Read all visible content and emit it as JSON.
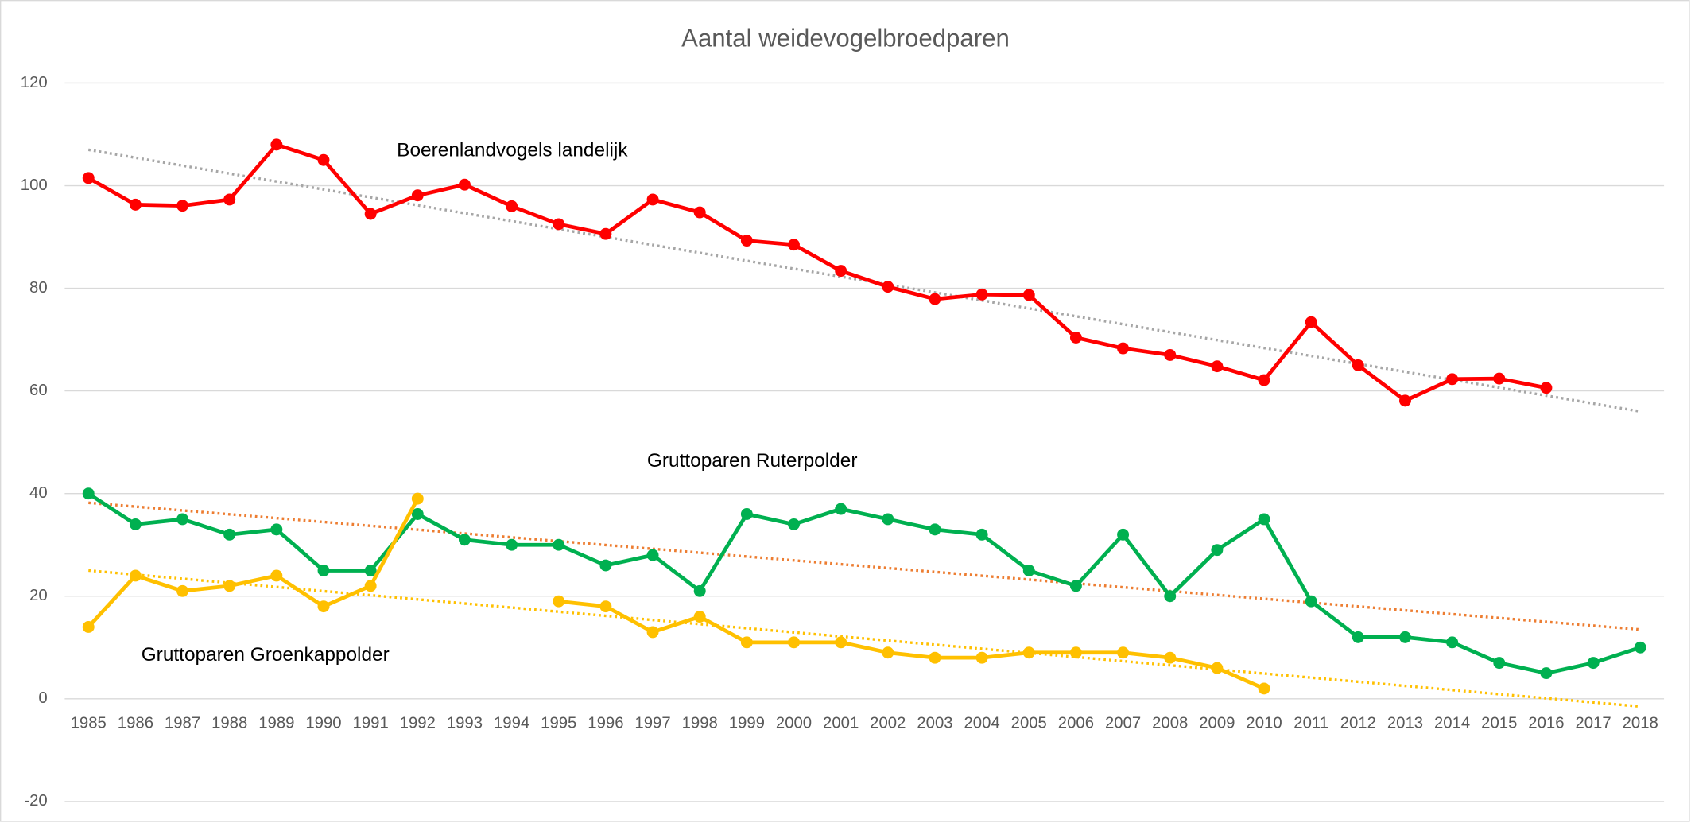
{
  "chart_data": {
    "type": "line",
    "title": "Aantal weidevogelbroedparen",
    "categories": [
      "1985",
      "1986",
      "1987",
      "1988",
      "1989",
      "1990",
      "1991",
      "1992",
      "1993",
      "1994",
      "1995",
      "1996",
      "1997",
      "1998",
      "1999",
      "2000",
      "2001",
      "2002",
      "2003",
      "2004",
      "2005",
      "2006",
      "2007",
      "2008",
      "2009",
      "2010",
      "2011",
      "2012",
      "2013",
      "2014",
      "2015",
      "2016",
      "2017",
      "2018"
    ],
    "series": [
      {
        "color": "#ff0000",
        "values": [
          101.5,
          96.3,
          96.1,
          97.3,
          108,
          105,
          94.5,
          98.1,
          100.2,
          96,
          92.5,
          90.6,
          97.3,
          94.8,
          89.3,
          88.5,
          83.4,
          80.3,
          77.9,
          78.8,
          78.7,
          70.4,
          68.3,
          67,
          64.8,
          62.1,
          73.4,
          65,
          58.1,
          62.3,
          62.4,
          60.6,
          null,
          null
        ]
      },
      {
        "color": "#00b050",
        "values": [
          40,
          34,
          35,
          32,
          33,
          25,
          25,
          36,
          31,
          30,
          30,
          26,
          28,
          21,
          36,
          34,
          37,
          35,
          33,
          32,
          25,
          22,
          32,
          20,
          29,
          35,
          19,
          12,
          12,
          11,
          7,
          5,
          7,
          10
        ]
      },
      {
        "color": "#ffc000",
        "values": [
          14,
          24,
          21,
          22,
          24,
          18,
          22,
          39,
          null,
          null,
          19,
          18,
          13,
          16,
          11,
          11,
          11,
          9,
          8,
          8,
          9,
          9,
          9,
          8,
          6,
          2,
          null,
          null,
          null,
          null,
          null,
          null,
          null,
          null
        ]
      }
    ],
    "trendlines": [
      {
        "color": "#a6a6a6",
        "values": [
          107,
          56
        ]
      },
      {
        "color": "#ed7d31",
        "values": [
          38.2,
          13.5
        ]
      },
      {
        "color": "#ffc000",
        "values": [
          25,
          -1.5
        ]
      }
    ],
    "annotations": [
      "Boerenlandvogels landelijk",
      "Gruttoparen Ruterpolder",
      "Gruttoparen Groenkappolder"
    ],
    "ylim": [
      -20,
      120
    ],
    "yticks": [
      -20,
      0,
      20,
      40,
      60,
      80,
      100,
      120
    ],
    "grid": true
  }
}
